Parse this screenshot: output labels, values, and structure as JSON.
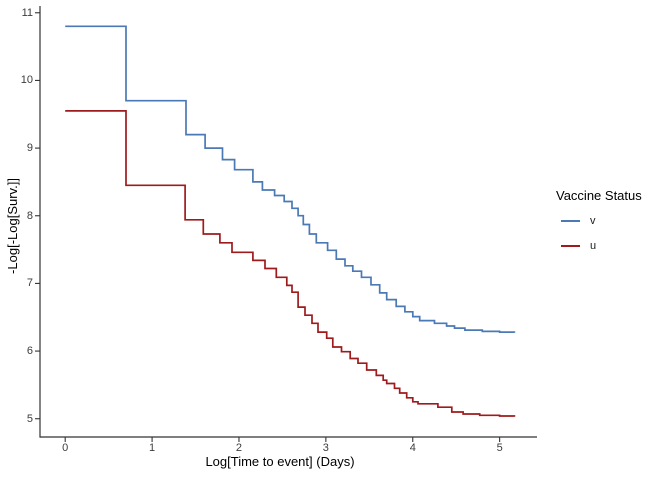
{
  "figure": {
    "background": "#ffffff"
  },
  "axes": {
    "x_label": "Log[Time to event] (Days)",
    "y_label": "-Log[-Log[Surv.]]"
  },
  "legend": {
    "title": "Vaccine Status",
    "items": [
      {
        "label": "v",
        "color": "#4a79b5"
      },
      {
        "label": "u",
        "color": "#9d1b1d"
      }
    ]
  },
  "chart_data": {
    "type": "line",
    "subtype": "step-function-survival-cloglog",
    "title": "",
    "xlabel": "Log[Time to event] (Days)",
    "ylabel": "-Log[-Log[Surv.]]",
    "xlim": [
      -0.29,
      5.43
    ],
    "ylim": [
      4.73,
      11.1
    ],
    "grid": false,
    "legend_title": "Vaccine Status",
    "legend_position": "right",
    "x_tick_labels": [
      "0",
      "1",
      "2",
      "3",
      "4",
      "5"
    ],
    "x_tick_values": [
      0,
      1,
      2,
      3,
      4,
      5
    ],
    "y_tick_labels": [
      "11",
      "10",
      "9",
      "8",
      "7",
      "6",
      "5"
    ],
    "y_tick_values": [
      11,
      10,
      9,
      8,
      7,
      6,
      5
    ],
    "axis_color": "#333333",
    "series": [
      {
        "name": "v",
        "color": "#4a79b5",
        "points": [
          [
            0,
            10.8
          ],
          [
            0.7,
            9.7
          ],
          [
            1.39,
            9.2
          ],
          [
            1.61,
            9.0
          ],
          [
            1.81,
            8.83
          ],
          [
            1.95,
            8.68
          ],
          [
            2.16,
            8.5
          ],
          [
            2.27,
            8.38
          ],
          [
            2.41,
            8.3
          ],
          [
            2.52,
            8.21
          ],
          [
            2.61,
            8.11
          ],
          [
            2.68,
            8.0
          ],
          [
            2.74,
            7.87
          ],
          [
            2.81,
            7.73
          ],
          [
            2.89,
            7.6
          ],
          [
            3.02,
            7.49
          ],
          [
            3.12,
            7.36
          ],
          [
            3.22,
            7.26
          ],
          [
            3.31,
            7.18
          ],
          [
            3.41,
            7.09
          ],
          [
            3.52,
            6.98
          ],
          [
            3.62,
            6.86
          ],
          [
            3.7,
            6.76
          ],
          [
            3.81,
            6.66
          ],
          [
            3.91,
            6.58
          ],
          [
            4.0,
            6.51
          ],
          [
            4.08,
            6.45
          ],
          [
            4.25,
            6.41
          ],
          [
            4.39,
            6.37
          ],
          [
            4.48,
            6.34
          ],
          [
            4.6,
            6.31
          ],
          [
            4.8,
            6.29
          ],
          [
            5.0,
            6.28
          ],
          [
            5.17,
            6.27
          ]
        ]
      },
      {
        "name": "u",
        "color": "#9d1b1d",
        "points": [
          [
            0,
            9.55
          ],
          [
            0.7,
            8.45
          ],
          [
            1.38,
            7.94
          ],
          [
            1.59,
            7.73
          ],
          [
            1.78,
            7.6
          ],
          [
            1.92,
            7.46
          ],
          [
            2.16,
            7.34
          ],
          [
            2.3,
            7.22
          ],
          [
            2.43,
            7.09
          ],
          [
            2.55,
            6.97
          ],
          [
            2.61,
            6.87
          ],
          [
            2.68,
            6.65
          ],
          [
            2.76,
            6.53
          ],
          [
            2.84,
            6.41
          ],
          [
            2.91,
            6.28
          ],
          [
            3.01,
            6.19
          ],
          [
            3.08,
            6.06
          ],
          [
            3.18,
            5.99
          ],
          [
            3.28,
            5.89
          ],
          [
            3.37,
            5.82
          ],
          [
            3.47,
            5.72
          ],
          [
            3.58,
            5.64
          ],
          [
            3.66,
            5.57
          ],
          [
            3.7,
            5.52
          ],
          [
            3.79,
            5.45
          ],
          [
            3.85,
            5.38
          ],
          [
            3.93,
            5.31
          ],
          [
            4.0,
            5.25
          ],
          [
            4.06,
            5.22
          ],
          [
            4.29,
            5.17
          ],
          [
            4.45,
            5.1
          ],
          [
            4.58,
            5.07
          ],
          [
            4.77,
            5.05
          ],
          [
            5.0,
            5.04
          ],
          [
            5.17,
            5.03
          ]
        ]
      }
    ]
  }
}
